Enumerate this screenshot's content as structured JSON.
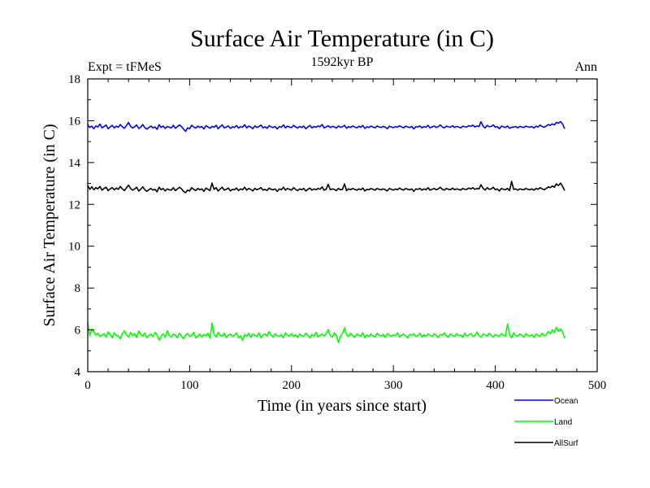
{
  "chart_data": {
    "type": "line",
    "title": "Surface Air Temperature (in C)",
    "subtitle": "1592kyr BP",
    "experiment_label": "Expt = tFMeS",
    "season_label": "Ann",
    "xlabel": "Time (in years since start)",
    "ylabel": "Surface Air Temperature (in C)",
    "xlim": [
      0,
      500
    ],
    "ylim": [
      4,
      18
    ],
    "xticks": [
      0,
      100,
      200,
      300,
      400,
      500
    ],
    "yticks": [
      4,
      6,
      8,
      10,
      12,
      14,
      16,
      18
    ],
    "x_start": 0,
    "x_step": 2,
    "series": [
      {
        "name": "Ocean",
        "color": "#0000ff",
        "values": [
          15.8,
          15.68,
          15.74,
          15.62,
          15.75,
          15.7,
          15.84,
          15.66,
          15.72,
          15.8,
          15.62,
          15.7,
          15.78,
          15.66,
          15.74,
          15.69,
          15.82,
          15.71,
          15.64,
          15.77,
          15.92,
          15.73,
          15.65,
          15.71,
          15.8,
          15.63,
          15.69,
          15.82,
          15.67,
          15.6,
          15.68,
          15.74,
          15.66,
          15.7,
          15.59,
          15.81,
          15.68,
          15.75,
          15.63,
          15.72,
          15.69,
          15.66,
          15.78,
          15.64,
          15.72,
          15.8,
          15.72,
          15.6,
          15.49,
          15.66,
          15.62,
          15.78,
          15.7,
          15.65,
          15.74,
          15.68,
          15.72,
          15.61,
          15.76,
          15.7,
          15.64,
          15.73,
          15.69,
          15.78,
          15.62,
          15.72,
          15.8,
          15.66,
          15.7,
          15.75,
          15.63,
          15.71,
          15.68,
          15.77,
          15.65,
          15.72,
          15.69,
          15.81,
          15.66,
          15.74,
          15.7,
          15.62,
          15.75,
          15.68,
          15.72,
          15.79,
          15.66,
          15.71,
          15.64,
          15.76,
          15.7,
          15.68,
          15.73,
          15.61,
          15.72,
          15.69,
          15.8,
          15.66,
          15.74,
          15.7,
          15.67,
          15.78,
          15.7,
          15.65,
          15.73,
          15.68,
          15.74,
          15.62,
          15.7,
          15.77,
          15.66,
          15.72,
          15.69,
          15.75,
          15.71,
          15.82,
          15.66,
          15.7,
          15.76,
          15.68,
          15.73,
          15.7,
          15.65,
          15.75,
          15.69,
          15.71,
          15.78,
          15.64,
          15.72,
          15.68,
          15.75,
          15.7,
          15.66,
          15.73,
          15.69,
          15.77,
          15.63,
          15.71,
          15.68,
          15.74,
          15.7,
          15.66,
          15.75,
          15.7,
          15.68,
          15.73,
          15.69,
          15.62,
          15.74,
          15.7,
          15.67,
          15.72,
          15.69,
          15.76,
          15.71,
          15.66,
          15.74,
          15.7,
          15.68,
          15.73,
          15.61,
          15.72,
          15.7,
          15.75,
          15.66,
          15.72,
          15.69,
          15.78,
          15.66,
          15.71,
          15.74,
          15.68,
          15.72,
          15.8,
          15.7,
          15.66,
          15.74,
          15.71,
          15.69,
          15.76,
          15.68,
          15.73,
          15.7,
          15.66,
          15.74,
          15.71,
          15.7,
          15.76,
          15.73,
          15.79,
          15.7,
          15.75,
          15.72,
          15.95,
          15.74,
          15.66,
          15.78,
          15.71,
          15.73,
          15.8,
          15.69,
          15.72,
          15.62,
          15.74,
          15.71,
          15.68,
          15.75,
          15.64,
          15.69,
          15.7,
          15.72,
          15.66,
          15.73,
          15.7,
          15.68,
          15.74,
          15.71,
          15.69,
          15.72,
          15.66,
          15.74,
          15.7,
          15.79,
          15.72,
          15.69,
          15.75,
          15.82,
          15.78,
          15.85,
          15.8,
          15.92,
          15.88,
          15.96,
          15.84,
          15.62
        ]
      },
      {
        "name": "Land",
        "color": "#00ff00",
        "values": [
          6.35,
          5.72,
          6.05,
          5.92,
          5.75,
          5.84,
          5.68,
          5.74,
          5.82,
          5.66,
          5.9,
          5.78,
          5.62,
          5.86,
          5.74,
          5.7,
          5.58,
          5.82,
          5.96,
          5.76,
          5.66,
          5.88,
          5.72,
          5.82,
          5.64,
          5.94,
          5.78,
          5.7,
          5.85,
          5.62,
          5.74,
          5.8,
          5.68,
          5.88,
          5.75,
          5.52,
          5.7,
          5.82,
          5.64,
          5.96,
          5.72,
          5.66,
          5.8,
          5.74,
          5.62,
          5.84,
          5.7,
          5.58,
          5.76,
          5.82,
          5.68,
          5.74,
          5.88,
          5.62,
          5.7,
          5.8,
          5.66,
          5.78,
          5.72,
          5.84,
          5.6,
          6.32,
          5.78,
          5.66,
          5.88,
          5.74,
          5.7,
          5.84,
          5.62,
          5.76,
          5.8,
          5.68,
          5.74,
          5.86,
          5.62,
          5.72,
          5.5,
          5.78,
          5.7,
          5.84,
          5.66,
          5.8,
          5.74,
          5.68,
          5.86,
          5.62,
          5.76,
          5.8,
          5.7,
          5.92,
          5.74,
          5.66,
          5.82,
          5.72,
          5.68,
          5.78,
          5.62,
          5.86,
          5.74,
          5.7,
          5.82,
          5.68,
          5.76,
          5.64,
          5.8,
          5.72,
          5.68,
          5.84,
          5.74,
          5.62,
          5.78,
          5.7,
          5.88,
          5.66,
          5.74,
          5.8,
          5.7,
          5.82,
          6.02,
          5.72,
          5.66,
          5.86,
          5.74,
          5.4,
          5.7,
          5.82,
          6.1,
          5.76,
          5.68,
          5.84,
          5.72,
          5.64,
          5.8,
          5.74,
          5.7,
          5.86,
          5.62,
          5.76,
          5.68,
          5.8,
          5.72,
          5.66,
          5.84,
          5.74,
          5.7,
          5.78,
          5.64,
          5.82,
          5.74,
          5.68,
          5.76,
          5.72,
          5.86,
          5.66,
          5.74,
          5.8,
          5.7,
          5.62,
          5.78,
          5.74,
          5.82,
          5.68,
          5.72,
          5.84,
          5.66,
          5.76,
          5.7,
          5.8,
          5.74,
          5.68,
          5.82,
          5.72,
          5.64,
          5.78,
          5.74,
          5.86,
          5.7,
          5.66,
          5.8,
          5.74,
          5.68,
          5.82,
          5.72,
          5.76,
          5.64,
          5.84,
          5.7,
          5.76,
          5.82,
          5.68,
          5.74,
          5.9,
          5.72,
          5.66,
          5.8,
          5.76,
          5.7,
          5.84,
          5.74,
          5.66,
          5.78,
          5.72,
          5.68,
          5.82,
          5.74,
          5.7,
          6.28,
          5.76,
          5.62,
          5.86,
          5.72,
          5.7,
          5.8,
          5.74,
          5.66,
          5.82,
          5.72,
          5.7,
          5.78,
          5.64,
          5.8,
          5.74,
          5.68,
          5.84,
          5.72,
          5.76,
          5.92,
          5.82,
          6.0,
          5.88,
          6.12,
          5.94,
          6.04,
          5.9,
          5.6
        ]
      },
      {
        "name": "AllSurf",
        "color": "#000000",
        "values": [
          12.9,
          12.72,
          12.84,
          12.7,
          12.8,
          12.74,
          12.86,
          12.68,
          12.76,
          12.82,
          12.66,
          12.74,
          12.8,
          12.7,
          12.78,
          12.72,
          12.86,
          12.74,
          12.66,
          12.8,
          12.92,
          12.76,
          12.68,
          12.74,
          12.82,
          12.64,
          12.72,
          12.84,
          12.7,
          12.62,
          12.7,
          12.76,
          12.68,
          12.72,
          12.6,
          12.82,
          12.7,
          12.76,
          12.64,
          12.74,
          12.7,
          12.68,
          12.8,
          12.66,
          12.74,
          12.82,
          12.74,
          12.62,
          12.56,
          12.68,
          12.64,
          12.8,
          12.72,
          12.66,
          12.76,
          12.7,
          12.74,
          12.62,
          12.78,
          12.72,
          12.66,
          13.02,
          12.72,
          12.8,
          12.64,
          12.74,
          12.82,
          12.68,
          12.72,
          12.78,
          12.64,
          12.72,
          12.7,
          12.78,
          12.66,
          12.74,
          12.7,
          12.82,
          12.68,
          12.76,
          12.72,
          12.64,
          12.76,
          12.7,
          12.74,
          12.8,
          12.68,
          12.72,
          12.66,
          12.78,
          12.72,
          12.7,
          12.74,
          12.62,
          12.74,
          12.7,
          12.82,
          12.68,
          12.76,
          12.72,
          12.68,
          12.8,
          12.72,
          12.66,
          12.74,
          12.7,
          12.76,
          12.64,
          12.72,
          12.78,
          12.68,
          12.74,
          12.7,
          12.76,
          12.72,
          12.84,
          12.68,
          12.72,
          12.96,
          12.7,
          12.74,
          12.72,
          12.66,
          12.76,
          12.7,
          12.72,
          12.98,
          12.66,
          12.74,
          12.7,
          12.76,
          12.72,
          12.68,
          12.74,
          12.7,
          12.78,
          12.64,
          12.72,
          12.7,
          12.76,
          12.72,
          12.68,
          12.76,
          12.72,
          12.7,
          12.74,
          12.7,
          12.64,
          12.76,
          12.72,
          12.68,
          12.74,
          12.7,
          12.78,
          12.72,
          12.68,
          12.76,
          12.72,
          12.7,
          12.74,
          12.62,
          12.74,
          12.72,
          12.76,
          12.68,
          12.74,
          12.7,
          12.8,
          12.68,
          12.72,
          12.76,
          12.7,
          12.74,
          12.82,
          12.72,
          12.68,
          12.76,
          12.72,
          12.7,
          12.78,
          12.7,
          12.74,
          12.72,
          12.68,
          12.76,
          12.72,
          12.72,
          12.78,
          12.74,
          12.8,
          12.72,
          12.76,
          12.74,
          12.94,
          12.76,
          12.68,
          12.8,
          12.72,
          12.74,
          12.82,
          12.7,
          12.74,
          12.64,
          12.76,
          12.72,
          12.7,
          12.76,
          12.66,
          13.1,
          12.72,
          12.74,
          12.68,
          12.74,
          12.72,
          12.7,
          12.76,
          12.72,
          12.7,
          12.74,
          12.68,
          12.76,
          12.72,
          12.8,
          12.74,
          12.7,
          12.76,
          12.84,
          12.8,
          12.88,
          12.82,
          12.98,
          12.9,
          13.02,
          12.86,
          12.66
        ]
      }
    ],
    "legend_position": "bottom-right"
  }
}
